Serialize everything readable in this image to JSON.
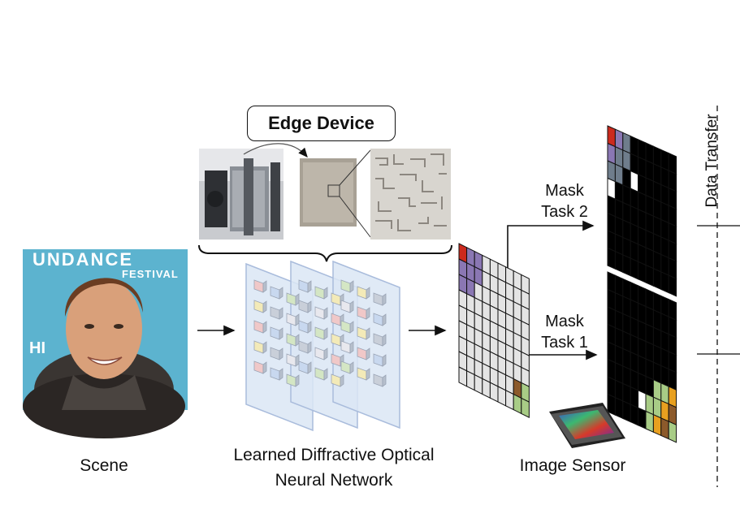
{
  "edge_device": {
    "title": "Edge Device"
  },
  "scene": {
    "label": "Scene",
    "backdrop_text_1": "UNDANCE",
    "backdrop_text_2": "FESTIVAL",
    "backdrop_text_3": "HI"
  },
  "donn": {
    "label_line1": "Learned Diffractive Optical",
    "label_line2": "Neural Network"
  },
  "sensor": {
    "label": "Image Sensor"
  },
  "mask_task2": {
    "line1": "Mask",
    "line2": "Task 2"
  },
  "mask_task1": {
    "line1": "Mask",
    "line2": "Task 1"
  },
  "data_transfer": {
    "label": "Data Transfer"
  },
  "colors": {
    "red": "#cc2a1e",
    "purple": "#8a77b3",
    "gray_blue": "#6f7d8c",
    "green": "#a8cc86",
    "orange": "#e8a020",
    "brown": "#8c5a2b",
    "teal_bg": "#5cb3cf",
    "plate": "#dbe6f4",
    "plate_border": "#a9bcdc"
  },
  "icons": [
    "arrow-right-icon",
    "brace-icon",
    "mask-grid-icon",
    "sensor-chip-icon"
  ]
}
